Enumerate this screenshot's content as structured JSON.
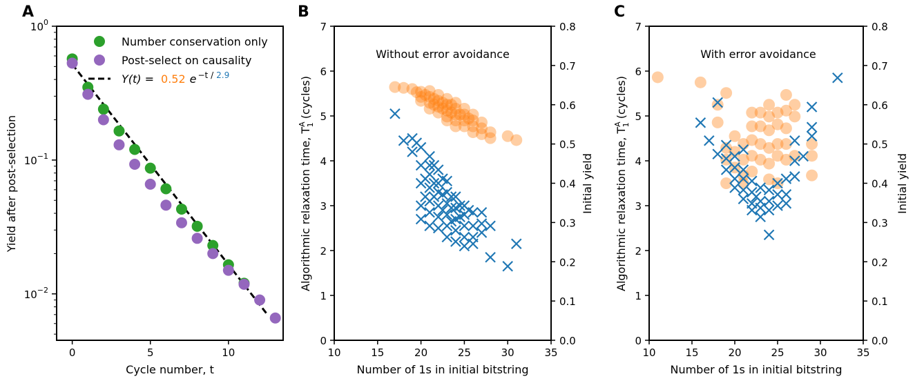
{
  "colors": {
    "green": "#2ca02c",
    "purple": "#9467bd",
    "blue": "#1f77b4",
    "orange": "#ff7f0e",
    "black": "#000000"
  },
  "chart_data": [
    {
      "panel": "A",
      "type": "scatter",
      "xlabel": "Cycle number, t",
      "ylabel": "Yield after post-selection",
      "yscale": "log",
      "xlim": [
        -1,
        13.5
      ],
      "ylim": [
        0.0045,
        1.0
      ],
      "xticks": [
        0,
        5,
        10
      ],
      "yticks": [
        {
          "base": "10",
          "exp": "−2",
          "value": 0.01
        },
        {
          "base": "10",
          "exp": "−1",
          "value": 0.1
        },
        {
          "base": "10",
          "exp": "0",
          "value": 1
        }
      ],
      "legend": {
        "position": "top-right",
        "fit_prefix": "Y(t) =",
        "fit_amplitude": "0.52",
        "fit_mid": "e",
        "fit_exp_prefix": "−t /",
        "fit_tau": "2.9"
      },
      "series": [
        {
          "name": "Number conservation only",
          "color": "green",
          "x": [
            0,
            1,
            2,
            3,
            4,
            5,
            6,
            7,
            8,
            9,
            10,
            11
          ],
          "y": [
            0.57,
            0.35,
            0.24,
            0.165,
            0.12,
            0.087,
            0.061,
            0.043,
            0.032,
            0.023,
            0.0165,
            0.012
          ]
        },
        {
          "name": "Post-select on causality",
          "color": "purple",
          "x": [
            0,
            1,
            2,
            3,
            4,
            5,
            6,
            7,
            8,
            9,
            10,
            11,
            12,
            13
          ],
          "y": [
            0.53,
            0.31,
            0.2,
            0.13,
            0.093,
            0.066,
            0.046,
            0.034,
            0.026,
            0.02,
            0.015,
            0.0118,
            0.009,
            0.0066
          ]
        },
        {
          "name": "fit",
          "type": "line",
          "style": "dashed",
          "color": "black",
          "amplitude": 0.52,
          "tau": 2.9,
          "x_range": [
            0,
            12.5
          ]
        }
      ]
    },
    {
      "panel": "B",
      "type": "scatter",
      "annotation": "Without error avoidance",
      "xlabel": "Number of 1s in initial bitstring",
      "ylabel_left": "Algorithmic relaxation time, T",
      "ylabel_left_sup": "A",
      "ylabel_left_sub": "1",
      "ylabel_left_suffix": " (cycles)",
      "ylabel_right": "Initial yield",
      "xlim": [
        10,
        35
      ],
      "ylim_left": [
        0,
        7
      ],
      "ylim_right": [
        0,
        0.8
      ],
      "xticks": [
        10,
        15,
        20,
        25,
        30,
        35
      ],
      "yticks_left": [
        0,
        1,
        2,
        3,
        4,
        5,
        6,
        7
      ],
      "yticks_right": [
        "0.0",
        "0.1",
        "0.2",
        "0.3",
        "0.4",
        "0.5",
        "0.6",
        "0.7",
        "0.8"
      ],
      "series": [
        {
          "name": "T1A",
          "color": "blue",
          "marker": "x",
          "axis": "left",
          "points": [
            [
              17,
              5.05
            ],
            [
              18,
              4.45
            ],
            [
              19,
              4.5
            ],
            [
              19,
              4.2
            ],
            [
              19.5,
              4.4
            ],
            [
              20,
              3.9
            ],
            [
              20,
              4.3
            ],
            [
              20,
              3.5
            ],
            [
              20,
              3.0
            ],
            [
              20,
              2.7
            ],
            [
              20.5,
              3.6
            ],
            [
              20.5,
              3.2
            ],
            [
              21,
              4.1
            ],
            [
              21,
              3.9
            ],
            [
              21,
              3.7
            ],
            [
              21,
              3.4
            ],
            [
              21,
              3.1
            ],
            [
              21,
              2.85
            ],
            [
              21,
              2.55
            ],
            [
              21.5,
              3.9
            ],
            [
              21.5,
              3.5
            ],
            [
              21.5,
              3.2
            ],
            [
              22,
              3.8
            ],
            [
              22,
              3.5
            ],
            [
              22,
              3.3
            ],
            [
              22,
              3.0
            ],
            [
              22,
              2.75
            ],
            [
              22,
              2.5
            ],
            [
              22.5,
              3.6
            ],
            [
              22.5,
              3.25
            ],
            [
              22.5,
              2.9
            ],
            [
              23,
              3.55
            ],
            [
              23,
              3.3
            ],
            [
              23,
              3.05
            ],
            [
              23,
              2.8
            ],
            [
              23,
              2.55
            ],
            [
              23,
              2.3
            ],
            [
              23.5,
              3.2
            ],
            [
              23.5,
              2.95
            ],
            [
              23.5,
              2.65
            ],
            [
              24,
              3.2
            ],
            [
              24,
              2.95
            ],
            [
              24,
              2.7
            ],
            [
              24,
              2.45
            ],
            [
              24,
              2.2
            ],
            [
              24.5,
              3.0
            ],
            [
              24.5,
              2.75
            ],
            [
              25,
              3.0
            ],
            [
              25,
              2.8
            ],
            [
              25,
              2.55
            ],
            [
              25,
              2.3
            ],
            [
              25,
              2.1
            ],
            [
              25.5,
              2.9
            ],
            [
              26,
              2.85
            ],
            [
              26,
              2.55
            ],
            [
              26,
              2.3
            ],
            [
              26,
              2.15
            ],
            [
              27,
              2.85
            ],
            [
              27,
              2.6
            ],
            [
              27,
              2.4
            ],
            [
              28,
              2.55
            ],
            [
              28,
              1.85
            ],
            [
              30,
              1.65
            ],
            [
              31,
              2.15
            ]
          ]
        },
        {
          "name": "Initial yield",
          "color": "orange",
          "marker": "o",
          "axis": "right",
          "points": [
            [
              17,
              0.645
            ],
            [
              18,
              0.643
            ],
            [
              19,
              0.64
            ],
            [
              19.5,
              0.632
            ],
            [
              20,
              0.633
            ],
            [
              20,
              0.62
            ],
            [
              20,
              0.61
            ],
            [
              20.5,
              0.625
            ],
            [
              21,
              0.635
            ],
            [
              21,
              0.62
            ],
            [
              21,
              0.605
            ],
            [
              21,
              0.59
            ],
            [
              21.5,
              0.615
            ],
            [
              21.5,
              0.6
            ],
            [
              22,
              0.625
            ],
            [
              22,
              0.61
            ],
            [
              22,
              0.595
            ],
            [
              22,
              0.58
            ],
            [
              22.5,
              0.605
            ],
            [
              22.5,
              0.59
            ],
            [
              23,
              0.615
            ],
            [
              23,
              0.6
            ],
            [
              23,
              0.585
            ],
            [
              23,
              0.57
            ],
            [
              23,
              0.56
            ],
            [
              23.5,
              0.6
            ],
            [
              23.5,
              0.58
            ],
            [
              24,
              0.605
            ],
            [
              24,
              0.59
            ],
            [
              24,
              0.575
            ],
            [
              24,
              0.56
            ],
            [
              24,
              0.545
            ],
            [
              24.5,
              0.575
            ],
            [
              25,
              0.59
            ],
            [
              25,
              0.575
            ],
            [
              25,
              0.56
            ],
            [
              25,
              0.545
            ],
            [
              25.5,
              0.565
            ],
            [
              26,
              0.575
            ],
            [
              26,
              0.56
            ],
            [
              26,
              0.545
            ],
            [
              26,
              0.53
            ],
            [
              27,
              0.555
            ],
            [
              27,
              0.54
            ],
            [
              27,
              0.525
            ],
            [
              28,
              0.53
            ],
            [
              28,
              0.515
            ],
            [
              30,
              0.52
            ],
            [
              31,
              0.51
            ]
          ]
        }
      ]
    },
    {
      "panel": "C",
      "type": "scatter",
      "annotation": "With error avoidance",
      "xlabel": "Number of 1s in initial bitstring",
      "ylabel_left": "Algorithmic relaxation time, T",
      "ylabel_left_sup": "A",
      "ylabel_left_sub": "1",
      "ylabel_left_suffix": " (cycles)",
      "ylabel_right": "Initial yield",
      "xlim": [
        10,
        35
      ],
      "ylim_left": [
        0,
        7
      ],
      "ylim_right": [
        0,
        0.8
      ],
      "xticks": [
        10,
        15,
        20,
        25,
        30,
        35
      ],
      "yticks_left": [
        0,
        1,
        2,
        3,
        4,
        5,
        6,
        7
      ],
      "yticks_right": [
        "0.0",
        "0.1",
        "0.2",
        "0.3",
        "0.4",
        "0.5",
        "0.6",
        "0.7",
        "0.8"
      ],
      "series": [
        {
          "name": "T1A",
          "color": "blue",
          "marker": "x",
          "axis": "left",
          "points": [
            [
              16,
              4.85
            ],
            [
              17,
              4.45
            ],
            [
              18,
              4.15
            ],
            [
              18,
              5.3
            ],
            [
              19,
              4.35
            ],
            [
              19,
              4.05
            ],
            [
              19,
              3.8
            ],
            [
              20,
              4.1
            ],
            [
              20,
              3.85
            ],
            [
              20,
              3.6
            ],
            [
              20,
              3.4
            ],
            [
              21,
              4.25
            ],
            [
              21,
              3.8
            ],
            [
              21,
              3.6
            ],
            [
              21,
              3.35
            ],
            [
              21,
              3.15
            ],
            [
              22,
              3.55
            ],
            [
              22,
              3.3
            ],
            [
              22,
              3.05
            ],
            [
              22,
              2.9
            ],
            [
              22.5,
              3.2
            ],
            [
              23,
              3.4
            ],
            [
              23,
              3.1
            ],
            [
              23,
              2.95
            ],
            [
              23,
              2.75
            ],
            [
              24,
              3.35
            ],
            [
              24,
              3.1
            ],
            [
              24,
              2.9
            ],
            [
              24,
              2.35
            ],
            [
              25,
              3.5
            ],
            [
              25,
              3.25
            ],
            [
              25,
              3.0
            ],
            [
              26,
              3.6
            ],
            [
              26,
              3.25
            ],
            [
              26,
              3.05
            ],
            [
              27,
              4.45
            ],
            [
              27,
              4.0
            ],
            [
              27,
              3.65
            ],
            [
              28,
              4.1
            ],
            [
              29,
              5.2
            ],
            [
              29,
              4.75
            ],
            [
              29,
              4.55
            ],
            [
              32,
              5.85
            ]
          ]
        },
        {
          "name": "Initial yield",
          "color": "orange",
          "marker": "o",
          "axis": "right",
          "points": [
            [
              11,
              0.67
            ],
            [
              16,
              0.657
            ],
            [
              18,
              0.6
            ],
            [
              18,
              0.555
            ],
            [
              19,
              0.63
            ],
            [
              19,
              0.49
            ],
            [
              19,
              0.46
            ],
            [
              19,
              0.4
            ],
            [
              20,
              0.52
            ],
            [
              20,
              0.48
            ],
            [
              20,
              0.44
            ],
            [
              21,
              0.5
            ],
            [
              21,
              0.46
            ],
            [
              21,
              0.42
            ],
            [
              21,
              0.4
            ],
            [
              22,
              0.58
            ],
            [
              22,
              0.545
            ],
            [
              22,
              0.51
            ],
            [
              22,
              0.47
            ],
            [
              22,
              0.43
            ],
            [
              23,
              0.58
            ],
            [
              23,
              0.545
            ],
            [
              23,
              0.5
            ],
            [
              23,
              0.46
            ],
            [
              24,
              0.6
            ],
            [
              24,
              0.57
            ],
            [
              24,
              0.535
            ],
            [
              24,
              0.49
            ],
            [
              24,
              0.45
            ],
            [
              24,
              0.41
            ],
            [
              25,
              0.58
            ],
            [
              25,
              0.55
            ],
            [
              25,
              0.5
            ],
            [
              25,
              0.47
            ],
            [
              25,
              0.4
            ],
            [
              26,
              0.625
            ],
            [
              26,
              0.585
            ],
            [
              26,
              0.54
            ],
            [
              26,
              0.5
            ],
            [
              26,
              0.46
            ],
            [
              27,
              0.6
            ],
            [
              27,
              0.57
            ],
            [
              27,
              0.47
            ],
            [
              29,
              0.5
            ],
            [
              29,
              0.47
            ],
            [
              29,
              0.42
            ]
          ]
        }
      ]
    }
  ]
}
